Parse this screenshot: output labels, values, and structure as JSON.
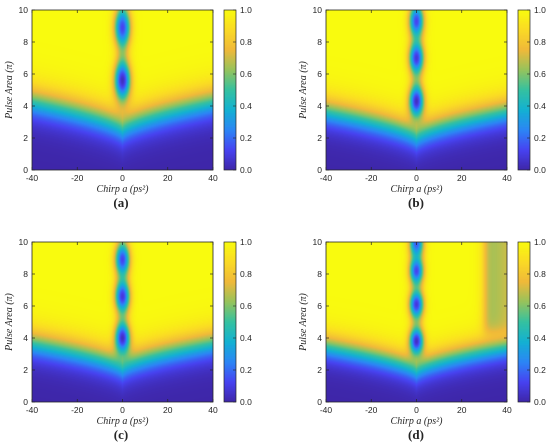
{
  "figure": {
    "xlabel": "Chirp a (ps²)",
    "ylabel": "Pulse Area (π)"
  },
  "colormap": [
    "#3e26a8",
    "#4743f1",
    "#2c86f5",
    "#13b1d2",
    "#35c1a0",
    "#96c35c",
    "#f0b93a",
    "#fada25",
    "#f9fb0e"
  ],
  "chart_data": [
    {
      "panel": "(a)",
      "type": "heatmap",
      "xlabel": "Chirp a (ps²)",
      "ylabel": "Pulse Area (π)",
      "xlim": [
        -40,
        40
      ],
      "ylim": [
        0,
        10
      ],
      "clim": [
        0,
        1
      ],
      "x_ticks": [
        "-40",
        "-20",
        "0",
        "20",
        "40"
      ],
      "y_ticks": [
        "0",
        "2",
        "4",
        "6",
        "8",
        "10"
      ],
      "colorbar_ticks": [
        "0.0",
        "0.2",
        "0.4",
        "0.6",
        "0.8",
        "1.0"
      ],
      "model": {
        "threshold_center": 2.6,
        "threshold_slope": 1.7,
        "threshold_width": 0.6,
        "dips": [
          {
            "y": 5.6,
            "depth": 0.95
          },
          {
            "y": 8.9,
            "depth": 0.85
          }
        ],
        "dip_width_x": 2.5,
        "dip_width_y": 0.85
      }
    },
    {
      "panel": "(b)",
      "type": "heatmap",
      "xlabel": "Chirp a (ps²)",
      "ylabel": "Pulse Area (π)",
      "xlim": [
        -40,
        40
      ],
      "ylim": [
        0,
        10
      ],
      "clim": [
        0,
        1
      ],
      "x_ticks": [
        "-40",
        "-20",
        "0",
        "20",
        "40"
      ],
      "y_ticks": [
        "0",
        "2",
        "4",
        "6",
        "8",
        "10"
      ],
      "colorbar_ticks": [
        "0.0",
        "0.2",
        "0.4",
        "0.6",
        "0.8",
        "1.0"
      ],
      "model": {
        "threshold_center": 2.1,
        "threshold_slope": 1.6,
        "threshold_width": 0.55,
        "dips": [
          {
            "y": 4.3,
            "depth": 0.95
          },
          {
            "y": 7.0,
            "depth": 0.9
          },
          {
            "y": 9.3,
            "depth": 0.85
          }
        ],
        "dip_width_x": 2.3,
        "dip_width_y": 0.7
      }
    },
    {
      "panel": "(c)",
      "type": "heatmap",
      "xlabel": "Chirp a (ps²)",
      "ylabel": "Pulse Area (π)",
      "xlim": [
        -40,
        40
      ],
      "ylim": [
        0,
        10
      ],
      "clim": [
        0,
        1
      ],
      "x_ticks": [
        "-40",
        "-20",
        "0",
        "20",
        "40"
      ],
      "y_ticks": [
        "0",
        "2",
        "4",
        "6",
        "8",
        "10"
      ],
      "colorbar_ticks": [
        "0.0",
        "0.2",
        "0.4",
        "0.6",
        "0.8",
        "1.0"
      ],
      "model": {
        "threshold_center": 2.2,
        "threshold_slope": 1.5,
        "threshold_width": 0.55,
        "dips": [
          {
            "y": 4.0,
            "depth": 0.95
          },
          {
            "y": 6.6,
            "depth": 0.9
          },
          {
            "y": 8.9,
            "depth": 0.85
          }
        ],
        "dip_width_x": 2.3,
        "dip_width_y": 0.7
      }
    },
    {
      "panel": "(d)",
      "type": "heatmap",
      "xlabel": "Chirp a (ps²)",
      "ylabel": "Pulse Area (π)",
      "xlim": [
        -40,
        40
      ],
      "ylim": [
        0,
        10
      ],
      "clim": [
        0,
        1
      ],
      "x_ticks": [
        "-40",
        "-20",
        "0",
        "20",
        "40"
      ],
      "y_ticks": [
        "0",
        "2",
        "4",
        "6",
        "8",
        "10"
      ],
      "colorbar_ticks": [
        "0.0",
        "0.2",
        "0.4",
        "0.6",
        "0.8",
        "1.0"
      ],
      "model": {
        "threshold_center": 2.0,
        "threshold_slope": 1.5,
        "threshold_width": 0.5,
        "dips": [
          {
            "y": 3.8,
            "depth": 0.95
          },
          {
            "y": 6.1,
            "depth": 0.9
          },
          {
            "y": 8.2,
            "depth": 0.85
          },
          {
            "y": 9.9,
            "depth": 0.8
          }
        ],
        "dip_width_x": 2.2,
        "dip_width_y": 0.6,
        "right_edge": {
          "x_start": 30,
          "y_start": 4.3,
          "value": 0.6
        }
      }
    }
  ]
}
